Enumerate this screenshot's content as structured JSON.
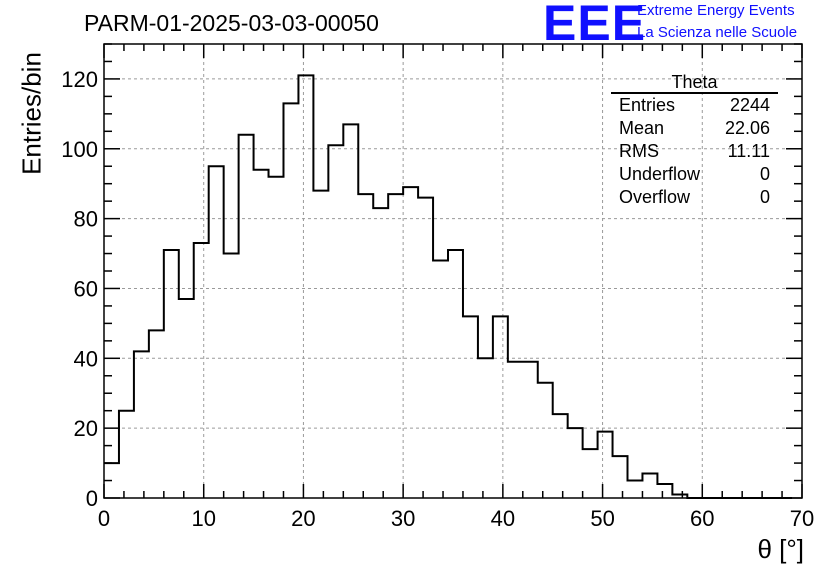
{
  "header": {
    "run_title": "PARM-01-2025-03-03-00050",
    "logo_text": "EEE",
    "logo_line1": "Extreme Energy Events",
    "logo_line2": "La Scienza nelle Scuole"
  },
  "stats_box": {
    "name": "Theta",
    "rows": [
      {
        "label": "Entries",
        "value": "2244"
      },
      {
        "label": "Mean",
        "value": "22.06"
      },
      {
        "label": "RMS",
        "value": "11.11"
      },
      {
        "label": "Underflow",
        "value": "0"
      },
      {
        "label": "Overflow",
        "value": "0"
      }
    ]
  },
  "colors": {
    "logo": "#1010ff",
    "line": "#000000",
    "grid": "#9a9a9a"
  },
  "chart_data": {
    "type": "histogram",
    "title": "PARM-01-2025-03-03-00050",
    "xlabel": "θ [°]",
    "ylabel": "Entries/bin",
    "xlim": [
      0,
      70
    ],
    "ylim": [
      0,
      130
    ],
    "x_ticks": [
      0,
      10,
      20,
      30,
      40,
      50,
      60,
      70
    ],
    "y_ticks": [
      0,
      20,
      40,
      60,
      80,
      100,
      120
    ],
    "grid": true,
    "bin_width": 1.5,
    "bin_edges_start": 0,
    "values": [
      10,
      25,
      42,
      48,
      71,
      57,
      73,
      95,
      70,
      104,
      94,
      92,
      113,
      121,
      88,
      101,
      107,
      87,
      83,
      87,
      89,
      86,
      68,
      71,
      52,
      40,
      52,
      39,
      39,
      33,
      24,
      20,
      14,
      19,
      12,
      5,
      7,
      4,
      1,
      0,
      0,
      0,
      0,
      0,
      0,
      0
    ]
  }
}
